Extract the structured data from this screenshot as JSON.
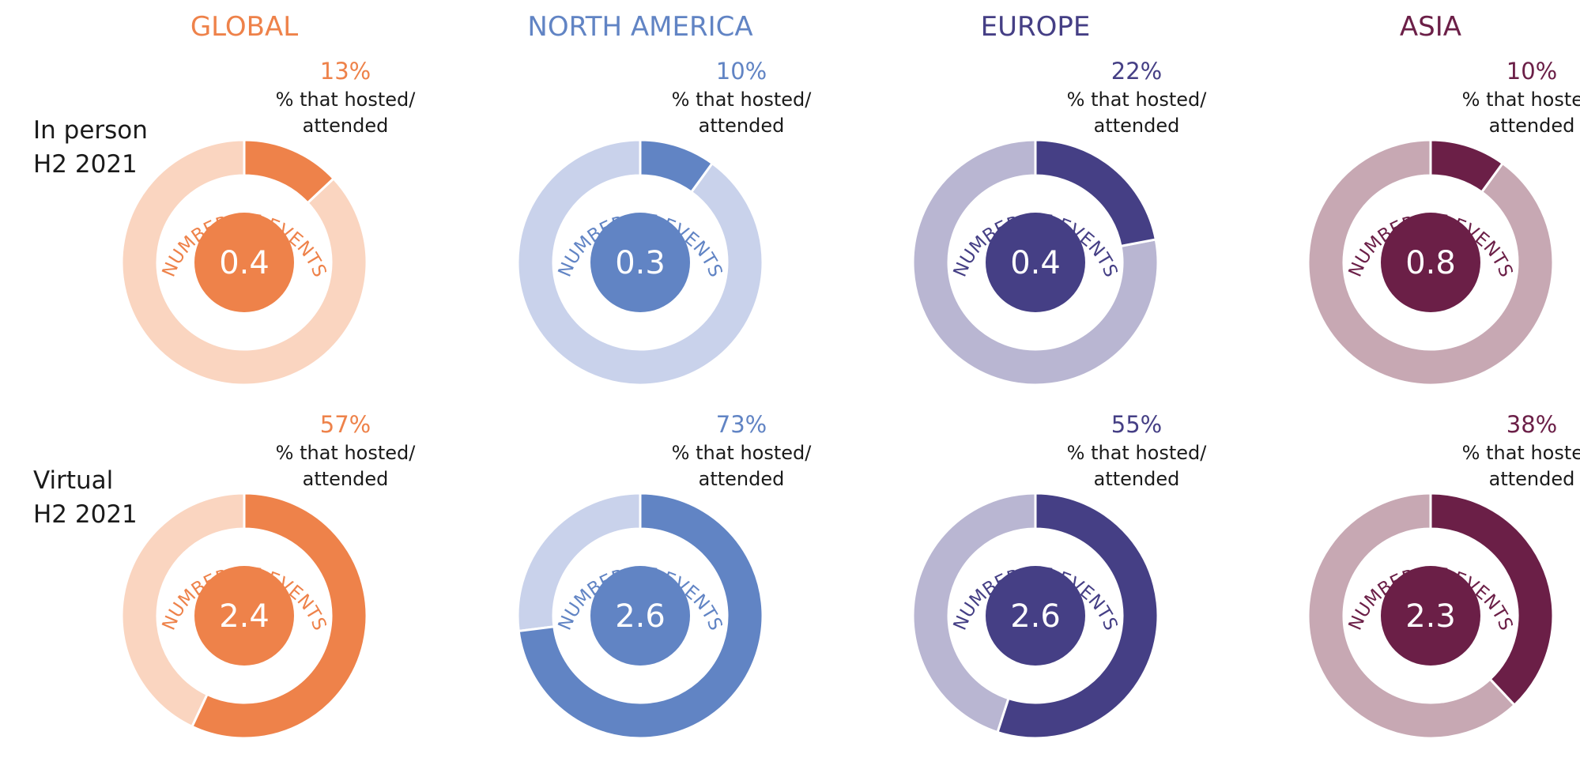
{
  "row_labels": [
    {
      "line1": "In person",
      "line2": "H2 2021"
    },
    {
      "line1": "Virtual",
      "line2": "H2 2021"
    }
  ],
  "center_label": "NUMBER OF EVENTS",
  "pct_caption_line1": "% that hosted/",
  "pct_caption_line2": "attended",
  "regions": [
    {
      "name": "GLOBAL",
      "color_dark": "#EE824A",
      "color_light": "#FAD5C0"
    },
    {
      "name": "NORTH AMERICA",
      "color_dark": "#6184C4",
      "color_light": "#C9D2EB"
    },
    {
      "name": "EUROPE",
      "color_dark": "#453F85",
      "color_light": "#B9B6D2"
    },
    {
      "name": "ASIA",
      "color_dark": "#6B1F47",
      "color_light": "#C7A8B3"
    }
  ],
  "chart_data": {
    "type": "pie",
    "variant": "donut-grid",
    "rows": [
      "In person H2 2021",
      "Virtual H2 2021"
    ],
    "columns": [
      "GLOBAL",
      "NORTH AMERICA",
      "EUROPE",
      "ASIA"
    ],
    "pct_hosted_attended": [
      [
        13,
        10,
        22,
        10
      ],
      [
        57,
        73,
        55,
        38
      ]
    ],
    "pct_labels": [
      [
        "13%",
        "10%",
        "22%",
        "10%"
      ],
      [
        "57%",
        "73%",
        "55%",
        "38%"
      ]
    ],
    "number_of_events": [
      [
        0.4,
        0.3,
        0.4,
        0.8
      ],
      [
        2.4,
        2.6,
        2.6,
        2.3
      ]
    ],
    "event_labels": [
      [
        "0.4",
        "0.3",
        "0.4",
        "0.8"
      ],
      [
        "2.4",
        "2.6",
        "2.6",
        "2.3"
      ]
    ]
  }
}
